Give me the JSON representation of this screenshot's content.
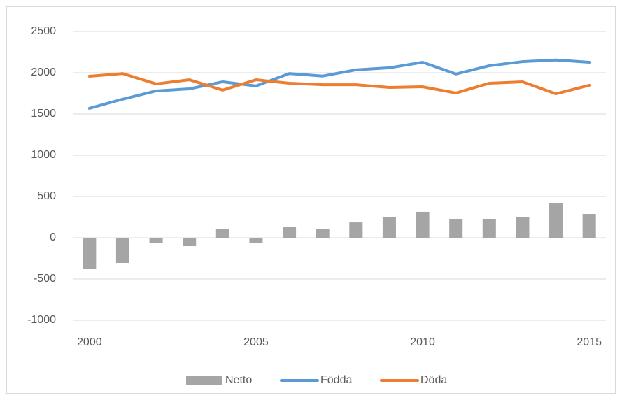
{
  "chart_data": {
    "type": "bar",
    "categories": [
      2000,
      null,
      null,
      null,
      null,
      2005,
      null,
      null,
      null,
      null,
      2010,
      null,
      null,
      null,
      null,
      2015
    ],
    "series": [
      {
        "name": "Netto",
        "type": "bar",
        "color": "#a5a5a5",
        "values": [
          -381,
          -305,
          -68,
          -102,
          102,
          -68,
          127,
          110,
          186,
          246,
          314,
          229,
          229,
          254,
          415,
          288
        ]
      },
      {
        "name": "Födda",
        "type": "line",
        "color": "#5b9bd5",
        "values": [
          1568,
          1680,
          1780,
          1805,
          1890,
          1840,
          1990,
          1960,
          2035,
          2060,
          2127,
          1985,
          2085,
          2135,
          2155,
          2127
        ]
      },
      {
        "name": "Döda",
        "type": "line",
        "color": "#ed7d31",
        "values": [
          1958,
          1990,
          1865,
          1915,
          1790,
          1915,
          1873,
          1855,
          1855,
          1822,
          1830,
          1755,
          1873,
          1890,
          1745,
          1848
        ]
      }
    ],
    "ylim": [
      -1000,
      2500
    ],
    "yticks": [
      -1000,
      -500,
      0,
      500,
      1000,
      1500,
      2000,
      2500
    ],
    "grid": true,
    "legend": "bottom"
  }
}
